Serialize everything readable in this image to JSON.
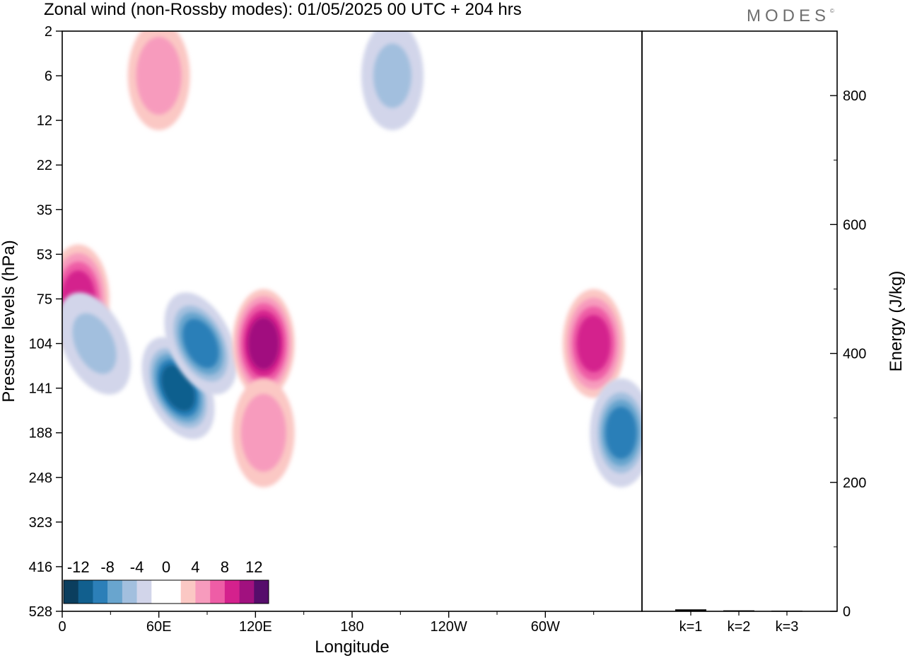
{
  "title": "Zonal wind (non-Rossby modes):  01/05/2025  00 UTC  + 204 hrs",
  "logo": "MODES",
  "logo_mark": "©",
  "colors": {
    "negative": [
      "#0b3e5e",
      "#115f8e",
      "#2c7fb8",
      "#69a5ce",
      "#a2bfde",
      "#d2d5ea"
    ],
    "neutral": "#ffffff",
    "positive": [
      "#fbc8c4",
      "#f79bbd",
      "#ee5da6",
      "#d4218d",
      "#a1117f",
      "#560d6b"
    ]
  },
  "chart_data": [
    {
      "type": "heatmap",
      "xlabel": "Longitude",
      "ylabel": "Pressure levels (hPa)",
      "x_ticks": [
        "0",
        "60E",
        "120E",
        "180",
        "120W",
        "60W"
      ],
      "x_range": [
        0,
        360
      ],
      "y_ticks": [
        "2",
        "6",
        "12",
        "22",
        "35",
        "53",
        "75",
        "104",
        "141",
        "188",
        "248",
        "323",
        "416",
        "528"
      ],
      "colorbar": {
        "labels": [
          "-12",
          "-8",
          "-4",
          "0",
          "4",
          "8",
          "12"
        ],
        "levels": [
          -14,
          -12,
          -10,
          -8,
          -6,
          -4,
          -2,
          2,
          4,
          6,
          8,
          10,
          12,
          14
        ]
      },
      "features": [
        {
          "lon": 10,
          "level": "75",
          "value": 9
        },
        {
          "lon": 72,
          "level": "141",
          "value": -13
        },
        {
          "lon": 86,
          "level": "104",
          "value": -11
        },
        {
          "lon": 20,
          "level": "104",
          "value": -6
        },
        {
          "lon": 125,
          "level": "104",
          "value": 10
        },
        {
          "lon": 125,
          "level": "188",
          "value": 5
        },
        {
          "lon": 330,
          "level": "104",
          "value": 9
        },
        {
          "lon": 347,
          "level": "188",
          "value": -11
        },
        {
          "lon": 205,
          "level": "6",
          "value": -6
        },
        {
          "lon": 60,
          "level": "6",
          "value": 5
        }
      ]
    },
    {
      "type": "bar",
      "categories": [
        "k=1",
        "k=2",
        "k=3"
      ],
      "values": [
        3,
        1.5,
        1
      ],
      "ylabel": "Energy (J/kg)",
      "ylim": [
        0,
        900
      ],
      "y_ticks": [
        "0",
        "200",
        "400",
        "600",
        "800"
      ]
    }
  ]
}
